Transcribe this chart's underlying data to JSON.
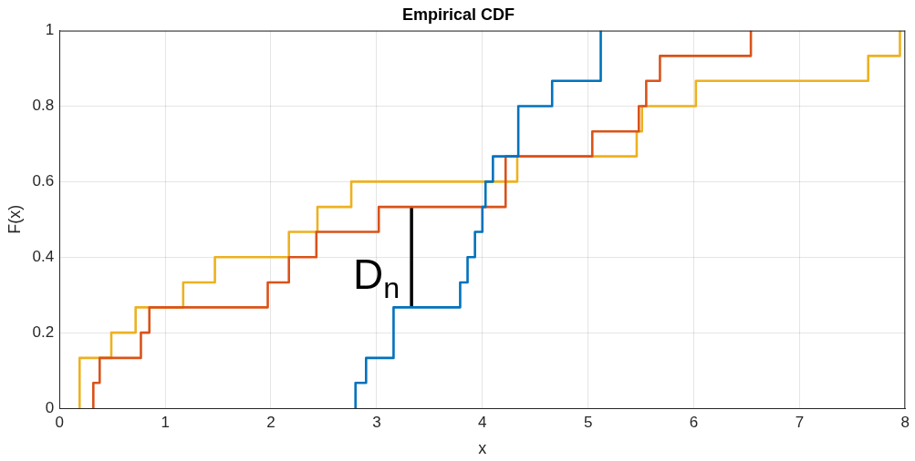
{
  "chart_data": {
    "type": "step",
    "title": "Empirical CDF",
    "xlabel": "x",
    "ylabel": "F(x)",
    "xlim": [
      0,
      8
    ],
    "xticks": [
      0,
      1,
      2,
      3,
      4,
      5,
      6,
      7,
      8
    ],
    "ylim": [
      0,
      1
    ],
    "yticks": [
      0,
      0.2,
      0.4,
      0.6,
      0.8,
      1
    ],
    "grid": true,
    "legend": false,
    "series": [
      {
        "color": "#0072bd",
        "x": [
          2.8,
          2.8,
          2.9,
          3.16,
          3.79,
          3.86,
          3.93,
          4.0,
          4.03,
          4.1,
          4.34,
          4.66,
          5.12
        ],
        "values": [
          0,
          0.067,
          0.133,
          0.267,
          0.333,
          0.4,
          0.467,
          0.533,
          0.6,
          0.667,
          0.8,
          0.867,
          1
        ]
      },
      {
        "color": "#d95319",
        "x": [
          0.32,
          0.32,
          0.38,
          0.77,
          0.85,
          1.97,
          2.17,
          2.43,
          3.02,
          4.22,
          5.04,
          5.48,
          5.55,
          5.68,
          6.54
        ],
        "values": [
          0,
          0.067,
          0.133,
          0.2,
          0.267,
          0.333,
          0.4,
          0.467,
          0.533,
          0.667,
          0.733,
          0.8,
          0.867,
          0.933,
          1
        ]
      },
      {
        "color": "#edb120",
        "x": [
          0.19,
          0.19,
          0.49,
          0.72,
          1.17,
          1.47,
          2.17,
          2.44,
          2.76,
          4.33,
          5.46,
          5.51,
          6.02,
          7.65,
          7.95
        ],
        "values": [
          0,
          0.133,
          0.2,
          0.267,
          0.333,
          0.4,
          0.467,
          0.533,
          0.6,
          0.667,
          0.733,
          0.8,
          0.867,
          0.933,
          1
        ]
      },
      {
        "type": "line",
        "color": "#000000",
        "x": [
          3.33,
          3.33
        ],
        "values": [
          0.267,
          0.533
        ]
      }
    ],
    "annotations": [
      "D$_{n}$"
    ]
  }
}
